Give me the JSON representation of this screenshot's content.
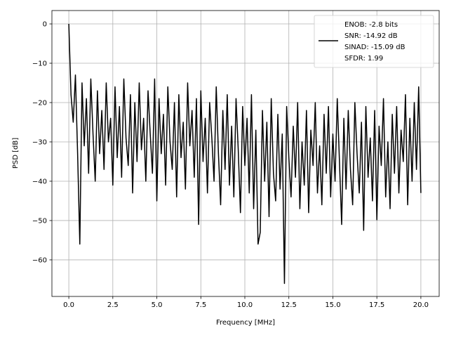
{
  "chart_data": {
    "type": "line",
    "title": "",
    "xlabel": "Frequency [MHz]",
    "ylabel": "PSD [dB]",
    "xlim": [
      -0.96,
      21.04
    ],
    "ylim": [
      -69.3,
      3.4
    ],
    "xticks": [
      0,
      2.5,
      5,
      7.5,
      10,
      12.5,
      15,
      17.5,
      20
    ],
    "xtick_labels": [
      "0.0",
      "2.5",
      "5.0",
      "7.5",
      "10.0",
      "12.5",
      "15.0",
      "17.5",
      "20.0"
    ],
    "yticks": [
      0,
      -10,
      -20,
      -30,
      -40,
      -50,
      -60
    ],
    "ytick_labels": [
      "0",
      "−10",
      "−20",
      "−30",
      "−40",
      "−50",
      "−60"
    ],
    "grid": true,
    "legend_placement": "upper-right",
    "series": [
      {
        "name": "ENOB: -2.8 bits\nSNR: -14.92 dB\nSINAD: -15.09 dB\nSFDR: 1.99",
        "color": "#000000",
        "x_start": 0,
        "x_step": 0.125,
        "values": [
          0,
          -18,
          -25,
          -13,
          -33,
          -56,
          -15,
          -31,
          -19,
          -38,
          -14,
          -28,
          -40,
          -17,
          -33,
          -22,
          -37,
          -15,
          -30,
          -24,
          -41,
          -16,
          -34,
          -21,
          -39,
          -14,
          -29,
          -36,
          -18,
          -43,
          -20,
          -35,
          -15,
          -32,
          -24,
          -40,
          -17,
          -28,
          -38,
          -14,
          -45,
          -19,
          -33,
          -23,
          -41,
          -16,
          -30,
          -37,
          -20,
          -44,
          -18,
          -34,
          -25,
          -42,
          -15,
          -31,
          -22,
          -39,
          -19,
          -51,
          -17,
          -35,
          -24,
          -43,
          -20,
          -29,
          -40,
          -16,
          -33,
          -46,
          -22,
          -37,
          -18,
          -41,
          -26,
          -44,
          -19,
          -32,
          -48,
          -21,
          -36,
          -24,
          -43,
          -18,
          -47,
          -27,
          -56,
          -53,
          -22,
          -40,
          -25,
          -49,
          -19,
          -38,
          -45,
          -23,
          -42,
          -28,
          -66,
          -21,
          -34,
          -44,
          -26,
          -39,
          -20,
          -47,
          -30,
          -41,
          -22,
          -48,
          -27,
          -36,
          -20,
          -43,
          -31,
          -46,
          -23,
          -38,
          -21,
          -44,
          -28,
          -40,
          -19,
          -35,
          -51,
          -24,
          -42,
          -22,
          -37,
          -46,
          -20,
          -33,
          -43,
          -25,
          -52.5,
          -21,
          -39,
          -29,
          -45,
          -22,
          -49.8,
          -26,
          -36,
          -19,
          -44,
          -30,
          -47,
          -23,
          -38,
          -21,
          -43,
          -27,
          -35,
          -18,
          -46,
          -24,
          -40,
          -20,
          -37,
          -16,
          -43
        ]
      }
    ],
    "legend": [
      "ENOB: -2.8 bits",
      "SNR: -14.92 dB",
      "SINAD: -15.09 dB",
      "SFDR: 1.99"
    ]
  }
}
